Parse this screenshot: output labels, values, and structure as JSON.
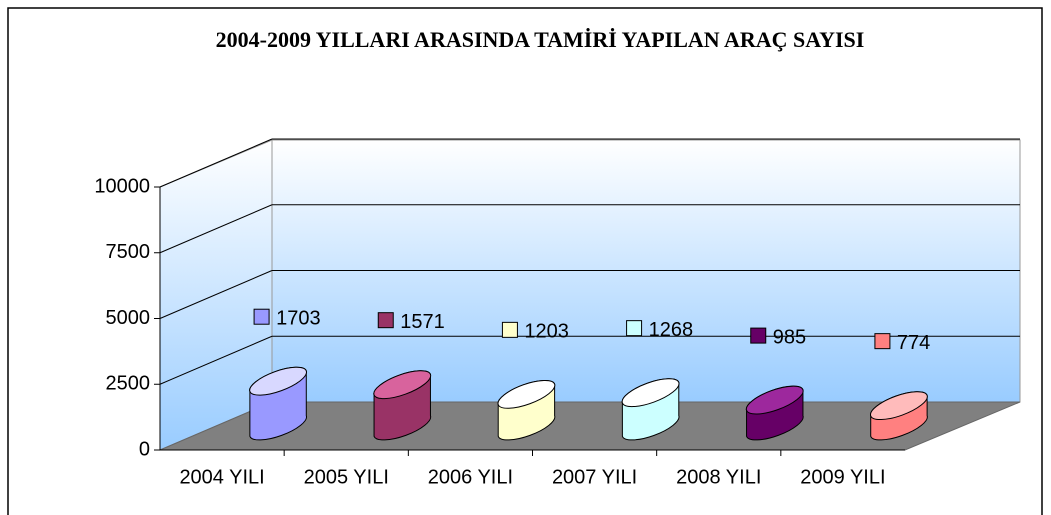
{
  "chart_data": {
    "type": "bar",
    "title": "2004-2009 YILLARI ARASINDA TAMİRİ YAPILAN ARAÇ SAYISI",
    "categories": [
      "2004 YILI",
      "2005 YILI",
      "2006 YILI",
      "2007 YILI",
      "2008 YILI",
      "2009 YILI"
    ],
    "series": [
      {
        "values": [
          1703,
          1571,
          1203,
          1268,
          985,
          774
        ],
        "colors": [
          "#9999ff",
          "#993366",
          "#ffffcc",
          "#ccffff",
          "#660066",
          "#ff8080"
        ]
      }
    ],
    "ylim": [
      0,
      10000
    ],
    "yticks": [
      0,
      2500,
      5000,
      7500,
      10000
    ],
    "grid": true
  }
}
